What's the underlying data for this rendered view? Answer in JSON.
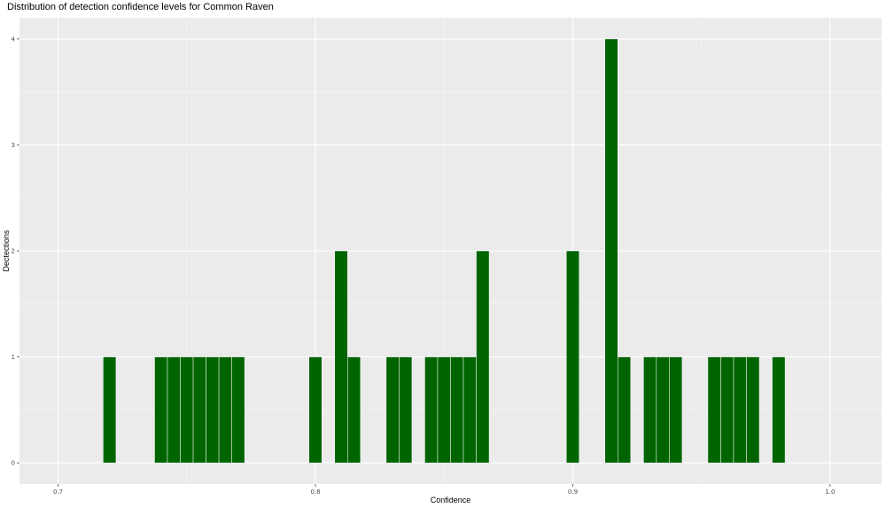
{
  "chart_data": {
    "type": "bar",
    "title": "Distribution of detection confidence levels for Common Raven",
    "xlabel": "Confidence",
    "ylabel": "Dectections",
    "xlim": [
      0.685,
      1.02
    ],
    "ylim": [
      -0.2,
      4.2
    ],
    "bin_width": 0.005,
    "x_ticks": [
      "0.7",
      "0.8",
      "0.9",
      "1.0"
    ],
    "x_tick_values": [
      0.7,
      0.8,
      0.9,
      1.0
    ],
    "y_ticks": [
      "0",
      "1",
      "2",
      "3",
      "4"
    ],
    "y_tick_values": [
      0,
      1,
      2,
      3,
      4
    ],
    "grid": true,
    "bar_color": "#006400",
    "panel_color": "#ebebeb",
    "bins": [
      {
        "x": 0.72,
        "count": 1
      },
      {
        "x": 0.74,
        "count": 1
      },
      {
        "x": 0.745,
        "count": 1
      },
      {
        "x": 0.75,
        "count": 1
      },
      {
        "x": 0.755,
        "count": 1
      },
      {
        "x": 0.76,
        "count": 1
      },
      {
        "x": 0.765,
        "count": 1
      },
      {
        "x": 0.77,
        "count": 1
      },
      {
        "x": 0.8,
        "count": 1
      },
      {
        "x": 0.81,
        "count": 2
      },
      {
        "x": 0.815,
        "count": 1
      },
      {
        "x": 0.83,
        "count": 1
      },
      {
        "x": 0.835,
        "count": 1
      },
      {
        "x": 0.845,
        "count": 1
      },
      {
        "x": 0.85,
        "count": 1
      },
      {
        "x": 0.855,
        "count": 1
      },
      {
        "x": 0.86,
        "count": 1
      },
      {
        "x": 0.865,
        "count": 2
      },
      {
        "x": 0.9,
        "count": 2
      },
      {
        "x": 0.915,
        "count": 4
      },
      {
        "x": 0.92,
        "count": 1
      },
      {
        "x": 0.93,
        "count": 1
      },
      {
        "x": 0.935,
        "count": 1
      },
      {
        "x": 0.94,
        "count": 1
      },
      {
        "x": 0.955,
        "count": 1
      },
      {
        "x": 0.96,
        "count": 1
      },
      {
        "x": 0.965,
        "count": 1
      },
      {
        "x": 0.97,
        "count": 1
      },
      {
        "x": 0.98,
        "count": 1
      }
    ]
  }
}
